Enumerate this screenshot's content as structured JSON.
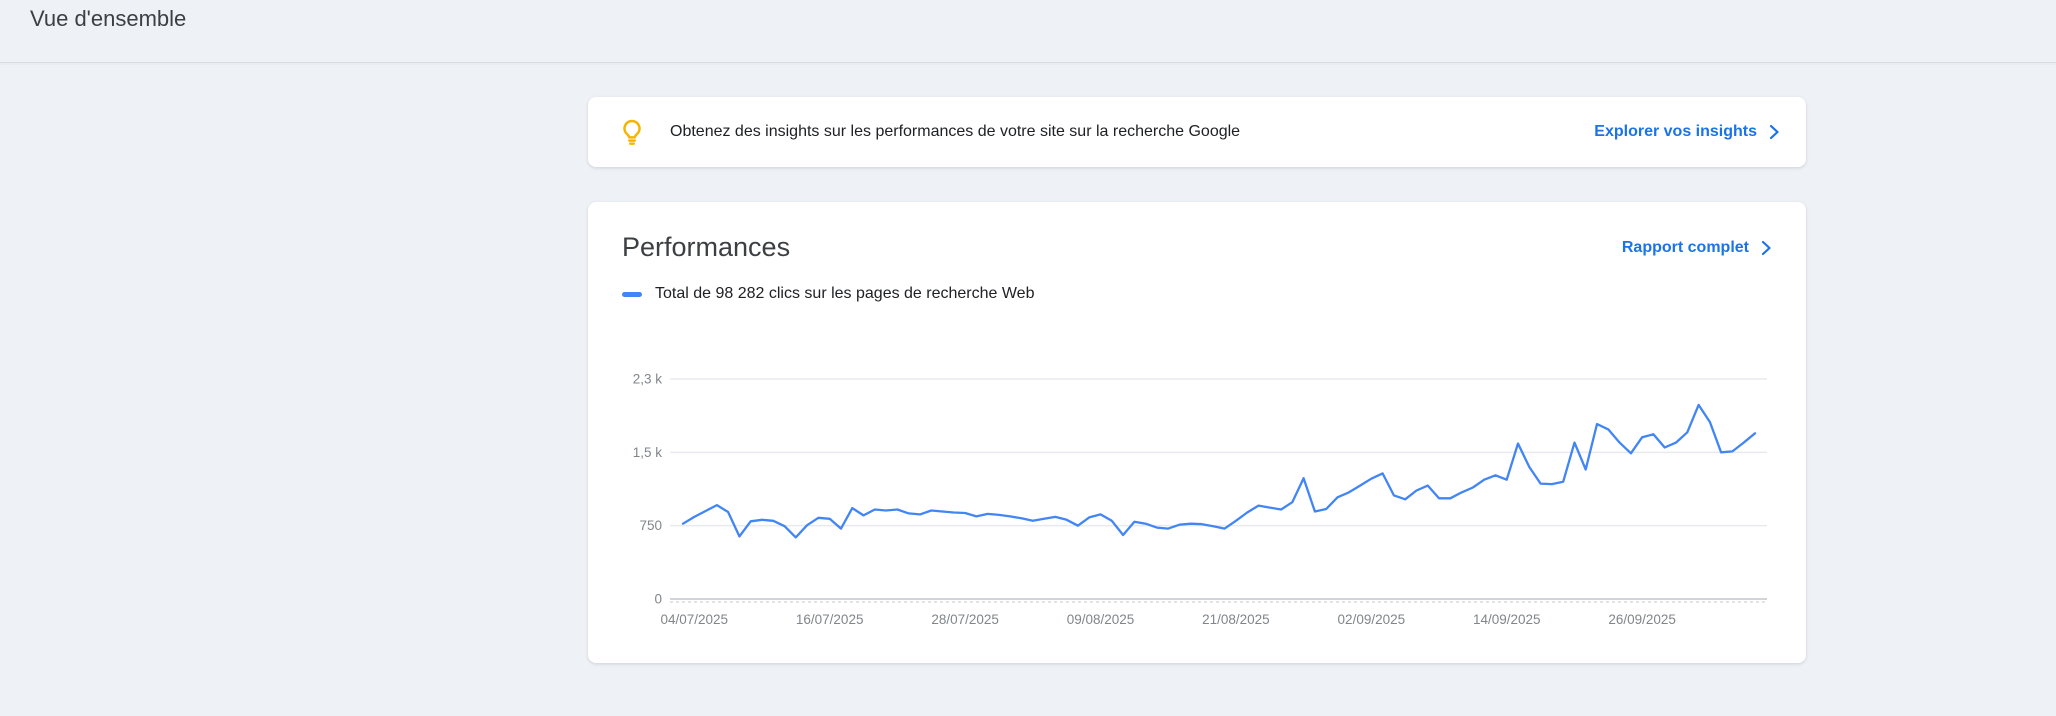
{
  "page_title": "Vue d'ensemble",
  "insights_banner": {
    "bulb_icon": "lightbulb",
    "bulb_color": "#f4b400",
    "message": "Obtenez des insights sur les performances de votre site sur la recherche Google",
    "cta_label": "Explorer vos insights"
  },
  "performances_card": {
    "title": "Performances",
    "report_link_label": "Rapport complet",
    "legend_label": "Total de 98 282 clics sur les pages de recherche Web",
    "total_clicks": "98 282"
  },
  "colors": {
    "accent_blue": "#1a73e8",
    "line_blue": "#4285f4",
    "gridline": "#e9eaed",
    "axis_text": "#80868b",
    "zero_axis": "#a6abb0",
    "zero_axis_dash": "#d8dadd"
  },
  "chart_data": {
    "type": "line",
    "title": "Performances",
    "legend_position": "top-left",
    "grid": "horizontal",
    "ylim": [
      0,
      2300
    ],
    "y_ticks": [
      {
        "label": "0",
        "value": 0
      },
      {
        "label": "750",
        "value": 750
      },
      {
        "label": "1,5 k",
        "value": 1500
      },
      {
        "label": "2,3 k",
        "value": 2250
      }
    ],
    "x_tick_labels": [
      "04/07/2025",
      "16/07/2025",
      "28/07/2025",
      "09/08/2025",
      "21/08/2025",
      "02/09/2025",
      "14/09/2025",
      "26/09/2025"
    ],
    "x_tick_indices": [
      1,
      13,
      25,
      37,
      49,
      61,
      73,
      85
    ],
    "series": [
      {
        "name": "Total de 98 282 clics sur les pages de recherche Web",
        "color": "#4285f4",
        "values": [
          770,
          840,
          900,
          960,
          890,
          640,
          795,
          810,
          800,
          745,
          630,
          755,
          830,
          820,
          720,
          930,
          855,
          915,
          905,
          915,
          875,
          865,
          905,
          895,
          885,
          880,
          845,
          870,
          860,
          845,
          825,
          800,
          820,
          840,
          810,
          750,
          835,
          865,
          800,
          655,
          790,
          770,
          730,
          720,
          760,
          770,
          765,
          745,
          720,
          800,
          885,
          955,
          935,
          915,
          990,
          1235,
          895,
          920,
          1040,
          1090,
          1160,
          1230,
          1285,
          1060,
          1020,
          1110,
          1160,
          1030,
          1030,
          1090,
          1140,
          1220,
          1265,
          1220,
          1590,
          1350,
          1180,
          1175,
          1200,
          1600,
          1325,
          1790,
          1735,
          1600,
          1490,
          1655,
          1685,
          1550,
          1600,
          1705,
          1985,
          1810,
          1500,
          1510,
          1600,
          1695
        ]
      }
    ]
  }
}
